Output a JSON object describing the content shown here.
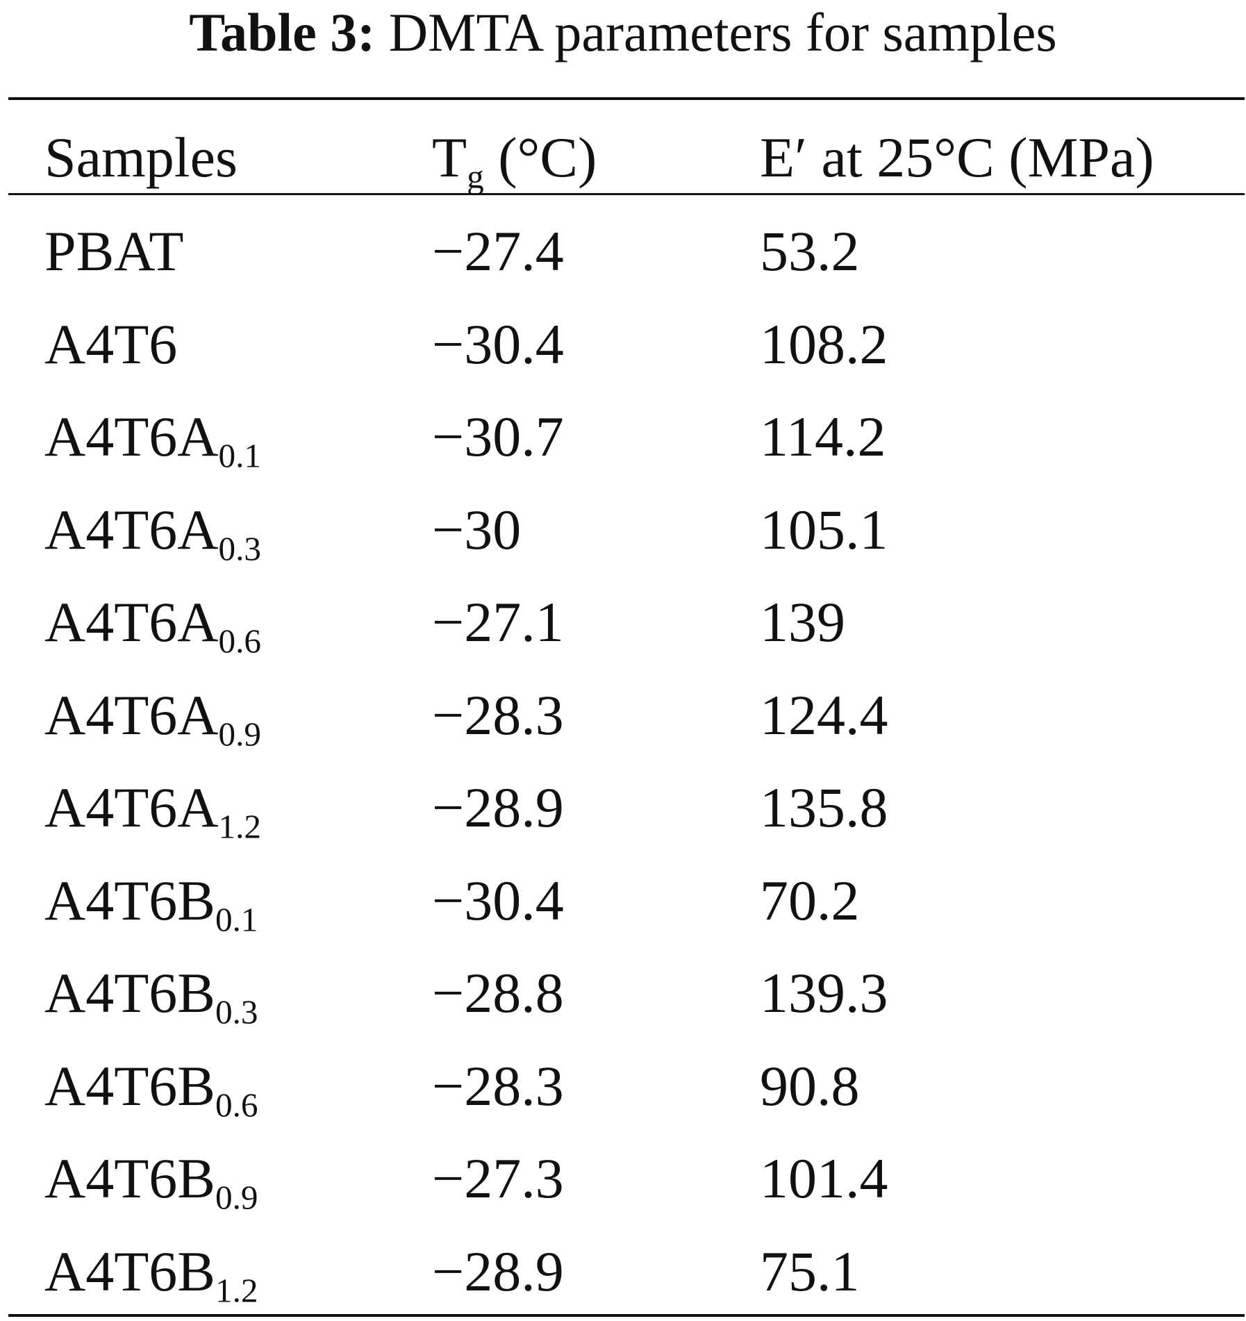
{
  "table": {
    "caption_label": "Table 3:",
    "caption_text": "DMTA parameters for samples",
    "headers": {
      "samples": "Samples",
      "tg_main": "T",
      "tg_sub": "g",
      "tg_unit": " (°C)",
      "e_prime": "E′ at 25°C (MPa)"
    },
    "rows": [
      {
        "sample": "PBAT",
        "sub": "",
        "tg": "−27.4",
        "e": "53.2"
      },
      {
        "sample": "A4T6",
        "sub": "",
        "tg": "−30.4",
        "e": "108.2"
      },
      {
        "sample": "A4T6A",
        "sub": "0.1",
        "tg": "−30.7",
        "e": "114.2"
      },
      {
        "sample": "A4T6A",
        "sub": "0.3",
        "tg": "−30",
        "e": "105.1"
      },
      {
        "sample": "A4T6A",
        "sub": "0.6",
        "tg": "−27.1",
        "e": "139"
      },
      {
        "sample": "A4T6A",
        "sub": "0.9",
        "tg": "−28.3",
        "e": "124.4"
      },
      {
        "sample": "A4T6A",
        "sub": "1.2",
        "tg": "−28.9",
        "e": "135.8"
      },
      {
        "sample": "A4T6B",
        "sub": "0.1",
        "tg": "−30.4",
        "e": "70.2"
      },
      {
        "sample": "A4T6B",
        "sub": "0.3",
        "tg": "−28.8",
        "e": "139.3"
      },
      {
        "sample": "A4T6B",
        "sub": "0.6",
        "tg": "−28.3",
        "e": "90.8"
      },
      {
        "sample": "A4T6B",
        "sub": "0.9",
        "tg": "−27.3",
        "e": "101.4"
      },
      {
        "sample": "A4T6B",
        "sub": "1.2",
        "tg": "−28.9",
        "e": "75.1"
      }
    ]
  }
}
